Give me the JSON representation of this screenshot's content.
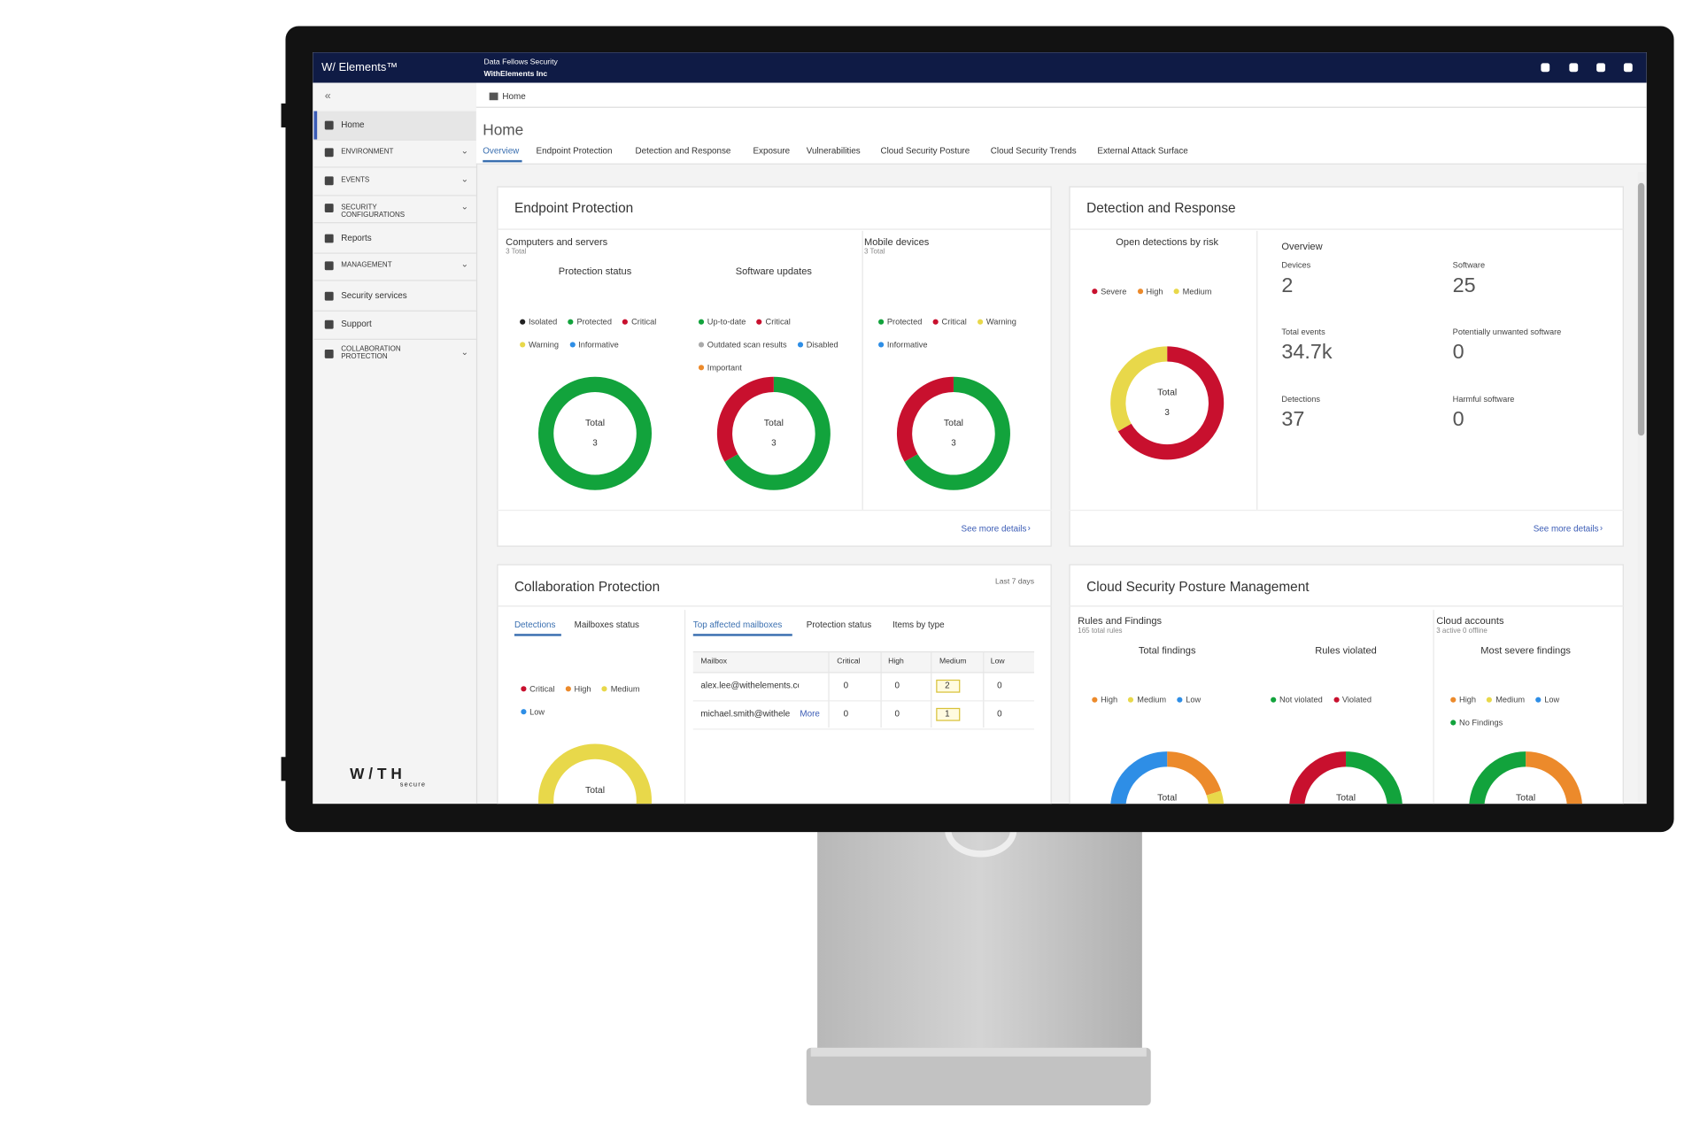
{
  "header": {
    "logo": "W/ Elements™",
    "org": "Data Fellows Security",
    "tenant": "WithElements Inc"
  },
  "sidebar": {
    "items": [
      "Home",
      "ENVIRONMENT",
      "EVENTS",
      "SECURITY CONFIGURATIONS",
      "Reports",
      "MANAGEMENT",
      "Security services",
      "Support",
      "COLLABORATION PROTECTION"
    ],
    "brand": "W/TH",
    "brand_sub": "secure"
  },
  "breadcrumb": "Home",
  "page_title": "Home",
  "tabs": [
    "Overview",
    "Endpoint Protection",
    "Detection and Response",
    "Exposure",
    "Vulnerabilities",
    "Cloud Security Posture",
    "Cloud Security Trends",
    "External Attack Surface"
  ],
  "endpoint": {
    "title": "Endpoint Protection",
    "computers": {
      "label": "Computers and servers",
      "total": "3 Total"
    },
    "mobile": {
      "label": "Mobile devices",
      "total": "3 Total"
    },
    "link": "See more details",
    "donuts": [
      {
        "title": "Protection status",
        "center": "Total",
        "total": "3",
        "legend": [
          {
            "name": "Isolated",
            "color": "#222222"
          },
          {
            "name": "Protected",
            "color": "#12a33c"
          },
          {
            "name": "Critical",
            "color": "#c8102e"
          },
          {
            "name": "Warning",
            "color": "#e8d84a"
          },
          {
            "name": "Informative",
            "color": "#2e8ee6"
          }
        ],
        "values": [
          0,
          3,
          0,
          0,
          0
        ]
      },
      {
        "title": "Software updates",
        "center": "Total",
        "total": "3",
        "legend": [
          {
            "name": "Up-to-date",
            "color": "#12a33c"
          },
          {
            "name": "Critical",
            "color": "#c8102e"
          },
          {
            "name": "Outdated scan results",
            "color": "#aaaaaa"
          },
          {
            "name": "Disabled",
            "color": "#2e8ee6"
          },
          {
            "name": "Important",
            "color": "#ec8a2b"
          }
        ],
        "values": [
          2,
          1,
          0,
          0,
          0
        ]
      },
      {
        "center": "Total",
        "total": "3",
        "legend": [
          {
            "name": "Protected",
            "color": "#12a33c"
          },
          {
            "name": "Critical",
            "color": "#c8102e"
          },
          {
            "name": "Warning",
            "color": "#e8d84a"
          },
          {
            "name": "Informative",
            "color": "#2e8ee6"
          }
        ],
        "values": [
          2,
          1,
          0,
          0
        ]
      }
    ]
  },
  "detection": {
    "title": "Detection and Response",
    "link": "See more details",
    "donuts": [
      {
        "title": "Open detections by risk",
        "center": "Total",
        "total": "3",
        "legend": [
          {
            "name": "Severe",
            "color": "#c8102e"
          },
          {
            "name": "High",
            "color": "#ec8a2b"
          },
          {
            "name": "Medium",
            "color": "#e8d84a"
          }
        ],
        "values": [
          2,
          0,
          1
        ]
      }
    ],
    "overview": "Overview",
    "stats": [
      {
        "label": "Devices",
        "value": "2"
      },
      {
        "label": "Software",
        "value": "25"
      },
      {
        "label": "Total events",
        "value": "34.7k"
      },
      {
        "label": "Potentially unwanted software",
        "value": "0"
      },
      {
        "label": "Detections",
        "value": "37"
      },
      {
        "label": "Harmful software",
        "value": "0"
      }
    ]
  },
  "collaboration": {
    "title": "Collaboration Protection",
    "period": "Last 7 days",
    "left_tabs": [
      "Detections",
      "Mailboxes status"
    ],
    "right_tabs": [
      "Top affected mailboxes",
      "Protection status",
      "Items by type"
    ],
    "donuts": [
      {
        "center": "Total",
        "legend": [
          {
            "name": "Critical",
            "color": "#c8102e"
          },
          {
            "name": "High",
            "color": "#ec8a2b"
          },
          {
            "name": "Medium",
            "color": "#e8d84a"
          },
          {
            "name": "Low",
            "color": "#2e8ee6"
          }
        ],
        "values": [
          0,
          0,
          3,
          0
        ]
      }
    ],
    "table": {
      "columns": [
        "Mailbox",
        "Critical",
        "High",
        "Medium",
        "Low"
      ],
      "rows": [
        [
          "alex.lee@withelements.com",
          "0",
          "0",
          "2",
          "0"
        ],
        [
          "michael.smith@withele",
          "0",
          "0",
          "1",
          "0"
        ]
      ],
      "more": "More"
    }
  },
  "cloud": {
    "title": "Cloud Security Posture Management",
    "rules": {
      "label": "Rules and Findings",
      "total": "165 total rules"
    },
    "accounts": {
      "label": "Cloud accounts",
      "total": "3 active 0 offline"
    },
    "donuts": [
      {
        "title": "Total findings",
        "center": "Total",
        "legend": [
          {
            "name": "High",
            "color": "#ec8a2b"
          },
          {
            "name": "Medium",
            "color": "#e8d84a"
          },
          {
            "name": "Low",
            "color": "#2e8ee6"
          }
        ],
        "values": [
          1,
          2,
          2
        ]
      },
      {
        "title": "Rules violated",
        "center": "Total",
        "legend": [
          {
            "name": "Not violated",
            "color": "#12a33c"
          },
          {
            "name": "Violated",
            "color": "#c8102e"
          }
        ],
        "values": [
          1,
          1
        ]
      },
      {
        "title": "Most severe findings",
        "center": "Total",
        "legend": [
          {
            "name": "High",
            "color": "#ec8a2b"
          },
          {
            "name": "Medium",
            "color": "#e8d84a"
          },
          {
            "name": "Low",
            "color": "#2e8ee6"
          },
          {
            "name": "No Findings",
            "color": "#12a33c"
          }
        ],
        "values": [
          1,
          0,
          0,
          1
        ]
      }
    ]
  }
}
